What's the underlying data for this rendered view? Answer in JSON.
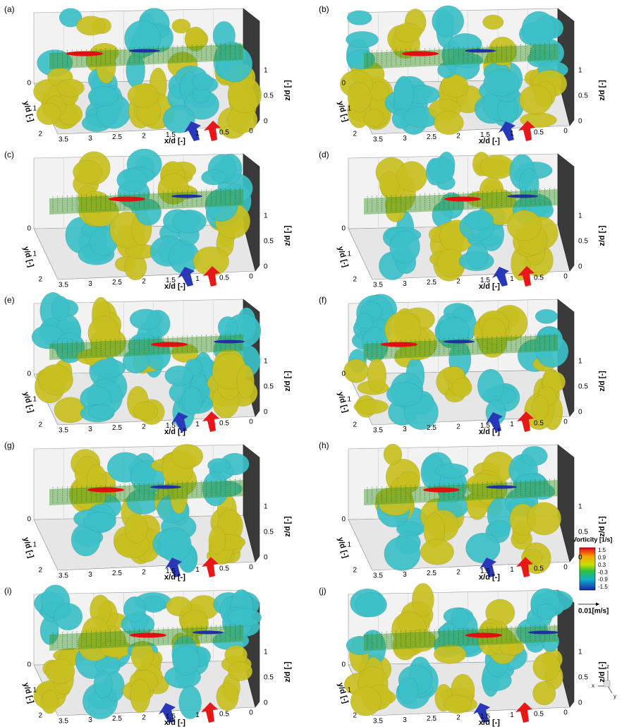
{
  "panels": [
    {
      "label": "(a)"
    },
    {
      "label": "(b)"
    },
    {
      "label": "(c)"
    },
    {
      "label": "(d)"
    },
    {
      "label": "(e)"
    },
    {
      "label": "(f)"
    },
    {
      "label": "(g)"
    },
    {
      "label": "(h)"
    },
    {
      "label": "(i)"
    },
    {
      "label": "(j)"
    }
  ],
  "axes": {
    "x_label": "x/d [-]",
    "y_label": "y/d [-]",
    "z_label": "z/d [-]",
    "x_ticks": [
      "3.5",
      "3",
      "2.5",
      "2",
      "1.5",
      "1",
      "0.5",
      "0"
    ],
    "y_ticks": [
      "0",
      "1",
      "2"
    ],
    "z_ticks": [
      "0",
      "0.5",
      "1"
    ]
  },
  "legend": {
    "title": "Vorticity [1/s]",
    "ticks": [
      "1.5",
      "0.9",
      "0.3",
      "-0.3",
      "-0.9",
      "-1.5"
    ],
    "vector": "0.01[m/s]"
  },
  "triad": {
    "x": "x",
    "y": "y",
    "z": "z"
  }
}
